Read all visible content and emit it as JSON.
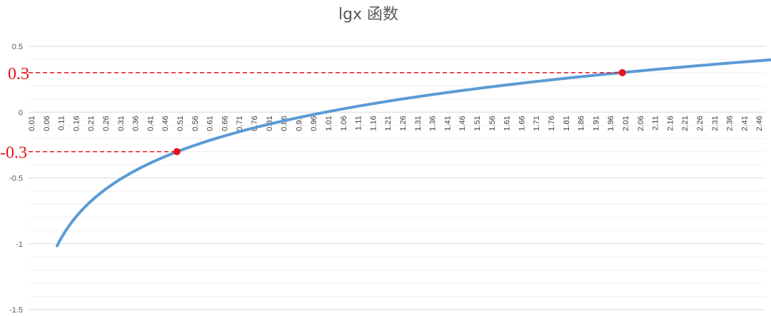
{
  "chart_data": {
    "type": "line",
    "title": "lgx 函数",
    "function": "log10(x)",
    "x_start": 0.01,
    "x_step": 0.05,
    "x_end": 2.5,
    "x_ticks": [
      "0.01",
      "0.06",
      "0.11",
      "0.16",
      "0.21",
      "0.26",
      "0.31",
      "0.36",
      "0.41",
      "0.46",
      "0.51",
      "0.56",
      "0.61",
      "0.66",
      "0.71",
      "0.76",
      "0.81",
      "0.86",
      "0.91",
      "0.96",
      "1.01",
      "1.06",
      "1.11",
      "1.16",
      "1.21",
      "1.26",
      "1.31",
      "1.36",
      "1.41",
      "1.46",
      "1.51",
      "1.56",
      "1.61",
      "1.66",
      "1.71",
      "1.76",
      "1.81",
      "1.86",
      "1.91",
      "1.96",
      "2.01",
      "2.06",
      "2.11",
      "2.16",
      "2.21",
      "2.26",
      "2.31",
      "2.36",
      "2.41",
      "2.46"
    ],
    "y_ticks": [
      {
        "value": 0.5,
        "label": "0.5"
      },
      {
        "value": 0,
        "label": "0"
      },
      {
        "value": -0.5,
        "label": "-0.5"
      },
      {
        "value": -1,
        "label": "-1"
      },
      {
        "value": -1.5,
        "label": "-1.5"
      }
    ],
    "ylim": [
      -1.5,
      0.5
    ],
    "series_color": "#5b9bd5",
    "grid": true,
    "annotations": [
      {
        "x": 0.5,
        "y": -0.3,
        "label": "-0.3",
        "color": "#e8121c"
      },
      {
        "x": 2.0,
        "y": 0.3,
        "label": "0.3",
        "color": "#e8121c"
      }
    ]
  }
}
